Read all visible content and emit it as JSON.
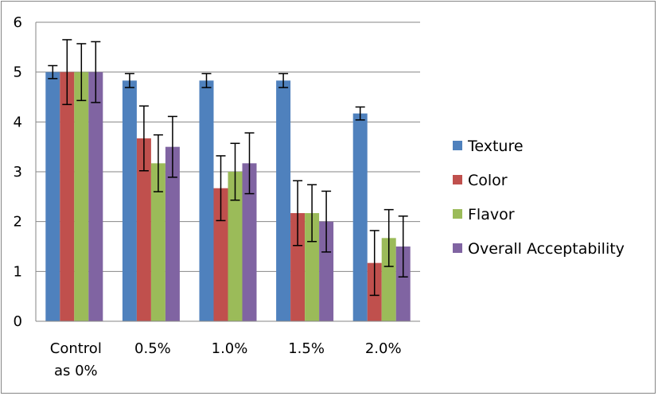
{
  "chart_data": {
    "type": "bar",
    "title": "",
    "xlabel": "",
    "ylabel": "",
    "categories": [
      [
        "Control",
        "as 0%"
      ],
      [
        "0.5%"
      ],
      [
        "1.0%"
      ],
      [
        "1.5%"
      ],
      [
        "2.0%"
      ]
    ],
    "ylim": [
      0,
      6
    ],
    "yticks": [
      0,
      1,
      2,
      3,
      4,
      5,
      6
    ],
    "grid": true,
    "legend_position": "right",
    "series": [
      {
        "name": "Texture",
        "color": "#4F81BD",
        "values": [
          5.0,
          4.83,
          4.83,
          4.83,
          4.17
        ],
        "errors": [
          0.13,
          0.14,
          0.14,
          0.14,
          0.13
        ]
      },
      {
        "name": "Color",
        "color": "#C0504D",
        "values": [
          5.0,
          3.67,
          2.67,
          2.17,
          1.17
        ],
        "errors": [
          0.65,
          0.65,
          0.65,
          0.65,
          0.65
        ]
      },
      {
        "name": "Flavor",
        "color": "#9BBB59",
        "values": [
          5.0,
          3.17,
          3.0,
          2.17,
          1.67
        ],
        "errors": [
          0.57,
          0.57,
          0.57,
          0.57,
          0.57
        ]
      },
      {
        "name": "Overall Acceptability",
        "color": "#8064A2",
        "values": [
          5.0,
          3.5,
          3.17,
          2.0,
          1.5
        ],
        "errors": [
          0.61,
          0.61,
          0.61,
          0.61,
          0.61
        ]
      }
    ]
  }
}
